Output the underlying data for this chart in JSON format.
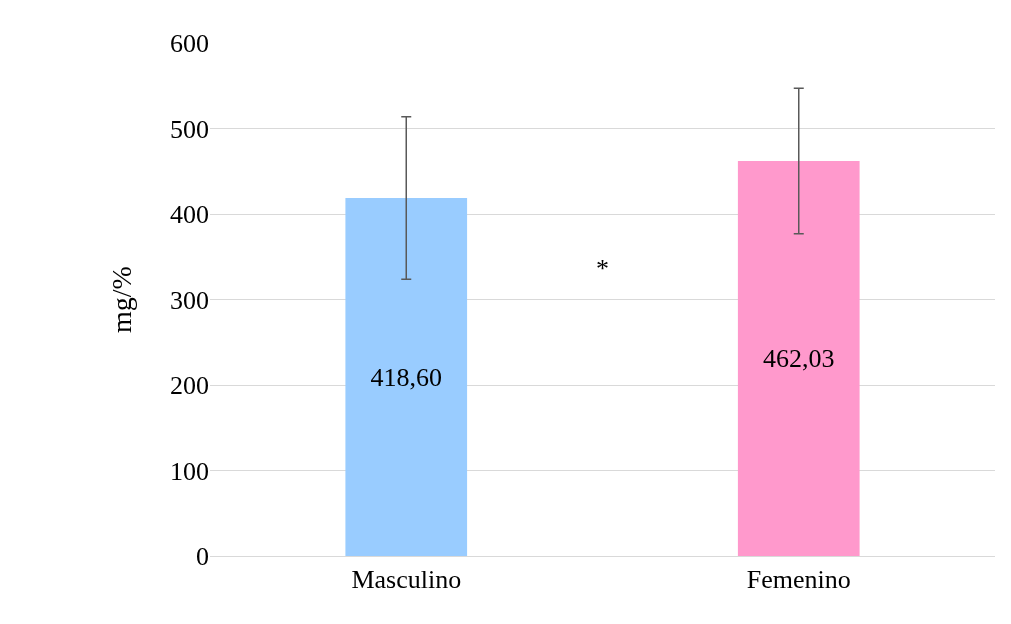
{
  "chart_data": {
    "type": "bar",
    "ylabel": "mg/%",
    "categories": [
      "Masculino",
      "Femenino"
    ],
    "values": [
      418.6,
      462.03
    ],
    "colors": [
      "#99ccff",
      "#ff99cc"
    ],
    "value_labels": [
      "418,60",
      "462,03"
    ],
    "errors": [
      95,
      85
    ],
    "ylim": [
      0,
      600
    ],
    "yticks": [
      0,
      100,
      200,
      300,
      400,
      500,
      600
    ],
    "grid": "y",
    "annotations": [
      "*"
    ]
  }
}
